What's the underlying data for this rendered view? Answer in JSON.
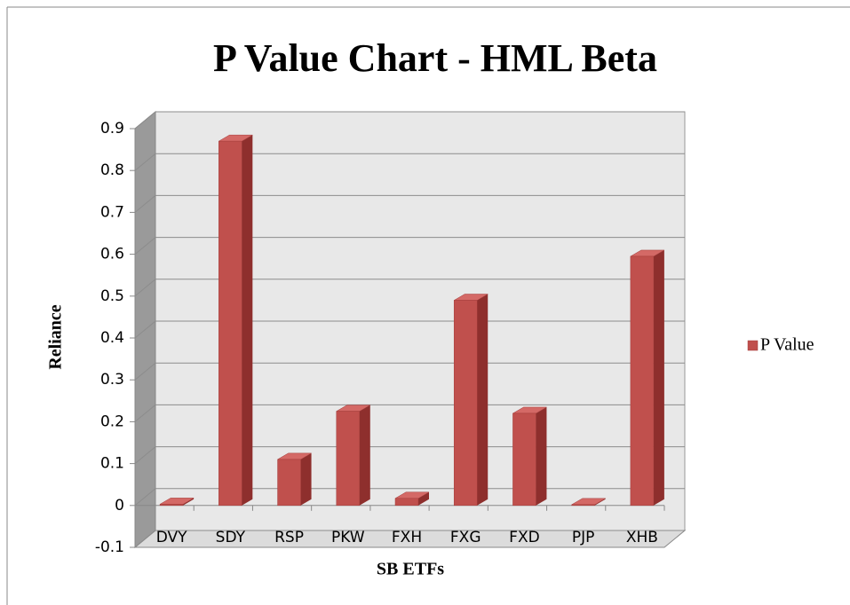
{
  "chart_data": {
    "type": "bar",
    "title": "P Value Chart - HML Beta",
    "x_label": "SB ETFs",
    "y_label": "Reliance",
    "categories": [
      "DVY",
      "SDY",
      "RSP",
      "PKW",
      "FXH",
      "FXG",
      "FXD",
      "PJP",
      "XHB"
    ],
    "series": [
      {
        "name": "P Value",
        "color": "#c0504d",
        "values": [
          0.003,
          0.87,
          0.11,
          0.225,
          0.017,
          0.49,
          0.22,
          0.002,
          0.595
        ]
      }
    ],
    "ylim": [
      -0.1,
      0.9
    ],
    "yticks": [
      -0.1,
      0,
      0.1,
      0.2,
      0.3,
      0.4,
      0.5,
      0.6,
      0.7,
      0.8,
      0.9
    ],
    "grid": true,
    "legend": "right"
  }
}
